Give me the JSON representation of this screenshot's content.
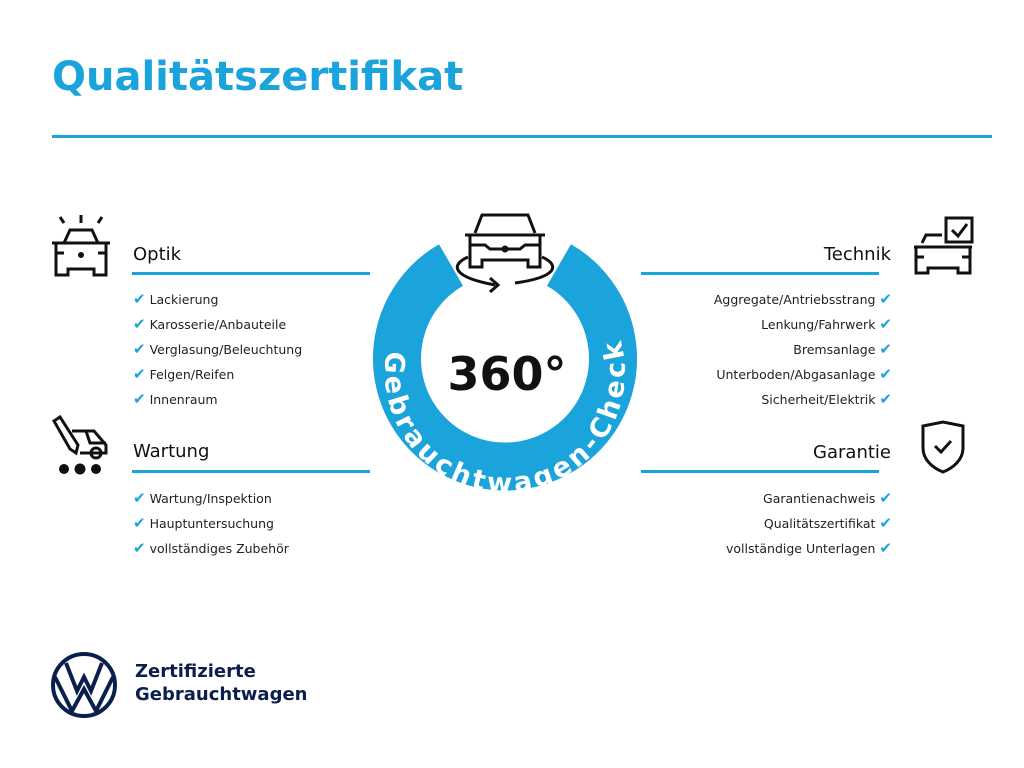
{
  "title": "Qualitätszertifikat",
  "colors": {
    "accent": "#1ba3dc",
    "brand_navy": "#0b1f4d"
  },
  "center": {
    "number": "360°",
    "ring_text": "Gebrauchtwagen-Check",
    "icon": "car-rotate-icon"
  },
  "sections": {
    "optik": {
      "heading": "Optik",
      "icon": "car-lights-icon",
      "items": [
        "Lackierung",
        "Karosserie/Anbauteile",
        "Verglasung/Beleuchtung",
        "Felgen/Reifen",
        "Innenraum"
      ]
    },
    "wartung": {
      "heading": "Wartung",
      "icon": "car-service-icon",
      "items": [
        "Wartung/Inspektion",
        "Hauptuntersuchung",
        "vollständiges Zubehör"
      ]
    },
    "technik": {
      "heading": "Technik",
      "icon": "car-checkbox-icon",
      "items": [
        "Aggregate/Antriebsstrang",
        "Lenkung/Fahrwerk",
        "Bremsanlage",
        "Unterboden/Abgasanlage",
        "Sicherheit/Elektrik"
      ]
    },
    "garantie": {
      "heading": "Garantie",
      "icon": "shield-check-icon",
      "items": [
        "Garantienachweis",
        "Qualitätszertifikat",
        "vollständige Unterlagen"
      ]
    }
  },
  "check_mark": "✔",
  "brand": {
    "line1": "Zertifizierte",
    "line2": "Gebrauchtwagen",
    "logo": "VW"
  }
}
